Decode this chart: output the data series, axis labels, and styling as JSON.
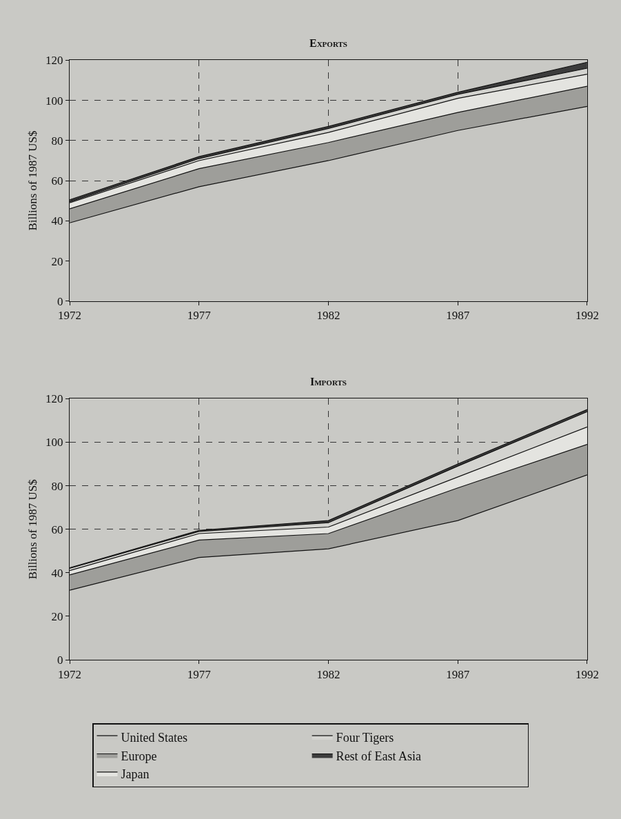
{
  "chart_data": [
    {
      "type": "area",
      "title": "Exports",
      "ylabel": "Billions of 1987 US$",
      "x": [
        1972,
        1977,
        1982,
        1987,
        1992
      ],
      "stacked": true,
      "series": [
        {
          "color": "#c6c6c2",
          "values": [
            39,
            57,
            70,
            85,
            97
          ]
        },
        {
          "color": "#9e9e9a",
          "values": [
            7,
            9,
            9,
            9,
            10
          ]
        },
        {
          "color": "#e4e4e0",
          "values": [
            3,
            4,
            5,
            7,
            6
          ]
        },
        {
          "color": "#d4d4d0",
          "values": [
            0.5,
            1,
            2,
            2,
            3
          ]
        },
        {
          "color": "#3c3c3c",
          "values": [
            1,
            1,
            1,
            1,
            3
          ]
        }
      ],
      "xlim": [
        1972,
        1992
      ],
      "xticks": [
        1972,
        1977,
        1982,
        1987,
        1992
      ],
      "ylim": [
        0,
        120
      ],
      "yticks": [
        0,
        20,
        40,
        60,
        80,
        100,
        120
      ],
      "grid": true,
      "legend": false
    },
    {
      "type": "area",
      "title": "Imports",
      "ylabel": "Billions of 1987 US$",
      "x": [
        1972,
        1977,
        1982,
        1987,
        1992
      ],
      "stacked": true,
      "series": [
        {
          "name": "United States",
          "color": "#c6c6c2",
          "values": [
            32,
            47,
            51,
            64,
            85
          ]
        },
        {
          "name": "Europe",
          "color": "#9e9e9a",
          "values": [
            7,
            8,
            7,
            15,
            14
          ]
        },
        {
          "name": "Japan",
          "color": "#e4e4e0",
          "values": [
            2,
            3,
            3,
            5,
            8
          ]
        },
        {
          "name": "Four Tigers",
          "color": "#d4d4d0",
          "values": [
            1,
            1,
            2,
            5,
            7
          ]
        },
        {
          "name": "Rest of East Asia",
          "color": "#3c3c3c",
          "values": [
            0.3,
            0.5,
            1,
            1,
            1
          ]
        }
      ],
      "xlim": [
        1972,
        1992
      ],
      "xticks": [
        1972,
        1977,
        1982,
        1987,
        1992
      ],
      "ylim": [
        0,
        120
      ],
      "yticks": [
        0,
        20,
        40,
        60,
        80,
        100,
        120
      ],
      "grid": true,
      "legend": "bottom"
    }
  ]
}
